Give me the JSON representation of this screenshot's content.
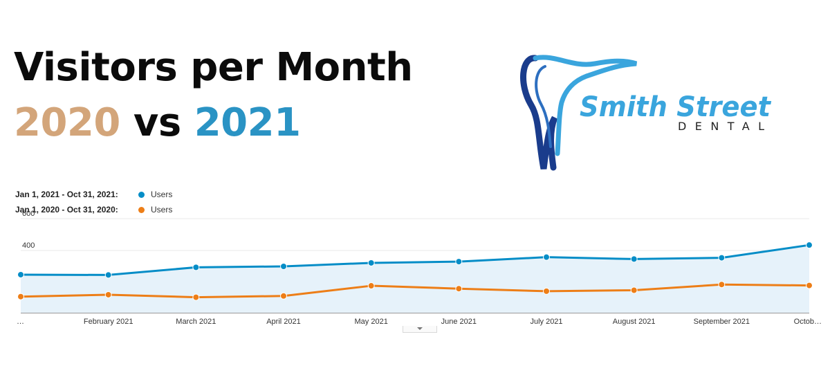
{
  "title": {
    "line1": "Visitors per Month",
    "year_a": "2020",
    "vs": "vs",
    "year_b": "2021"
  },
  "logo": {
    "name_line1": "Smith Street",
    "name_line2": "DENTAL",
    "colors": {
      "dark_blue": "#1a3c8c",
      "light_blue": "#3aa5dd"
    }
  },
  "colors": {
    "series_2021": "#058dc7",
    "series_2020": "#ed7e17",
    "area_fill": "#e6f2fa",
    "title_2020": "#d3a57a",
    "title_2021": "#2a93c4"
  },
  "chart_data": {
    "type": "line",
    "x": [
      "…",
      "February 2021",
      "March 2021",
      "April 2021",
      "May 2021",
      "June 2021",
      "July 2021",
      "August 2021",
      "September 2021",
      "Octob…"
    ],
    "series": [
      {
        "name": "Users",
        "range": "Jan 1, 2021 - Oct 31, 2021:",
        "color": "#058dc7",
        "values": [
          248,
          246,
          294,
          300,
          322,
          330,
          358,
          346,
          354,
          434
        ]
      },
      {
        "name": "Users",
        "range": "Jan 1, 2020 - Oct 31, 2020:",
        "color": "#ed7e17",
        "values": [
          110,
          122,
          106,
          114,
          178,
          160,
          144,
          150,
          186,
          180
        ]
      }
    ],
    "ylim": [
      0,
      600
    ],
    "yticks": [
      "200",
      "400",
      "600"
    ],
    "grid": true,
    "legend_position": "top-left"
  }
}
